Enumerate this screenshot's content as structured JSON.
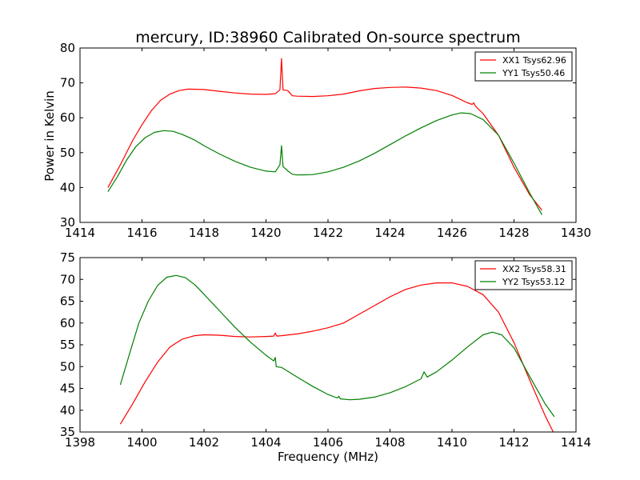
{
  "figure": {
    "title": "mercury, ID:38960 Calibrated On-source spectrum",
    "ylabel": "Power in Kelvin",
    "xlabel": "Frequency (MHz)"
  },
  "chart_data": [
    {
      "type": "line",
      "xlim": [
        1414,
        1430
      ],
      "ylim": [
        30,
        80
      ],
      "xticks": [
        1414,
        1416,
        1418,
        1420,
        1422,
        1424,
        1426,
        1428,
        1430
      ],
      "yticks": [
        30,
        40,
        50,
        60,
        70,
        80
      ],
      "legend": "top-right",
      "grid": false,
      "series": [
        {
          "name": "XX1 Tsys62.96",
          "color": "#ff0000",
          "points": [
            [
              1414.9,
              40.0
            ],
            [
              1415.3,
              46.5
            ],
            [
              1415.7,
              53.5
            ],
            [
              1416.0,
              58.0
            ],
            [
              1416.3,
              62.0
            ],
            [
              1416.6,
              65.0
            ],
            [
              1416.9,
              66.8
            ],
            [
              1417.2,
              67.8
            ],
            [
              1417.5,
              68.2
            ],
            [
              1418.0,
              68.1
            ],
            [
              1418.5,
              67.6
            ],
            [
              1419.0,
              67.1
            ],
            [
              1419.5,
              66.8
            ],
            [
              1420.0,
              66.7
            ],
            [
              1420.3,
              66.9
            ],
            [
              1420.45,
              68.0
            ],
            [
              1420.5,
              77.0
            ],
            [
              1420.55,
              68.0
            ],
            [
              1420.7,
              67.8
            ],
            [
              1420.85,
              66.3
            ],
            [
              1421.0,
              66.2
            ],
            [
              1421.5,
              66.1
            ],
            [
              1422.0,
              66.3
            ],
            [
              1422.5,
              66.8
            ],
            [
              1423.0,
              67.7
            ],
            [
              1423.5,
              68.4
            ],
            [
              1424.0,
              68.7
            ],
            [
              1424.5,
              68.8
            ],
            [
              1425.0,
              68.5
            ],
            [
              1425.5,
              67.8
            ],
            [
              1426.0,
              66.4
            ],
            [
              1426.5,
              64.3
            ],
            [
              1426.65,
              63.8
            ],
            [
              1426.7,
              64.3
            ],
            [
              1426.75,
              63.4
            ],
            [
              1427.0,
              61.2
            ],
            [
              1427.5,
              55.0
            ],
            [
              1428.0,
              45.8
            ],
            [
              1428.5,
              38.0
            ],
            [
              1428.9,
              33.5
            ]
          ]
        },
        {
          "name": "YY1 Tsys50.46",
          "color": "#008000",
          "points": [
            [
              1414.9,
              38.8
            ],
            [
              1415.2,
              43.0
            ],
            [
              1415.5,
              47.8
            ],
            [
              1415.8,
              51.7
            ],
            [
              1416.1,
              54.3
            ],
            [
              1416.4,
              55.8
            ],
            [
              1416.7,
              56.3
            ],
            [
              1417.0,
              56.1
            ],
            [
              1417.3,
              55.2
            ],
            [
              1417.7,
              53.6
            ],
            [
              1418.0,
              52.0
            ],
            [
              1418.5,
              49.6
            ],
            [
              1419.0,
              47.5
            ],
            [
              1419.5,
              45.8
            ],
            [
              1420.0,
              44.7
            ],
            [
              1420.3,
              44.5
            ],
            [
              1420.45,
              46.5
            ],
            [
              1420.5,
              52.0
            ],
            [
              1420.55,
              46.0
            ],
            [
              1420.7,
              44.8
            ],
            [
              1420.85,
              43.8
            ],
            [
              1421.0,
              43.6
            ],
            [
              1421.5,
              43.7
            ],
            [
              1422.0,
              44.5
            ],
            [
              1422.5,
              45.8
            ],
            [
              1423.0,
              47.6
            ],
            [
              1423.5,
              49.8
            ],
            [
              1424.0,
              52.3
            ],
            [
              1424.5,
              54.8
            ],
            [
              1425.0,
              57.1
            ],
            [
              1425.5,
              59.2
            ],
            [
              1426.0,
              60.8
            ],
            [
              1426.3,
              61.4
            ],
            [
              1426.6,
              61.2
            ],
            [
              1427.0,
              59.5
            ],
            [
              1427.5,
              55.0
            ],
            [
              1428.0,
              47.0
            ],
            [
              1428.5,
              38.5
            ],
            [
              1428.9,
              32.2
            ]
          ]
        }
      ]
    },
    {
      "type": "line",
      "xlim": [
        1398,
        1414
      ],
      "ylim": [
        35,
        75
      ],
      "xticks": [
        1398,
        1400,
        1402,
        1404,
        1406,
        1408,
        1410,
        1412,
        1414
      ],
      "yticks": [
        35,
        40,
        45,
        50,
        55,
        60,
        65,
        70,
        75
      ],
      "legend": "top-right",
      "grid": false,
      "series": [
        {
          "name": "XX2 Tsys58.31",
          "color": "#ff0000",
          "points": [
            [
              1399.3,
              36.8
            ],
            [
              1399.7,
              41.5
            ],
            [
              1400.1,
              46.5
            ],
            [
              1400.5,
              51.0
            ],
            [
              1400.9,
              54.5
            ],
            [
              1401.3,
              56.3
            ],
            [
              1401.7,
              57.1
            ],
            [
              1402.0,
              57.3
            ],
            [
              1402.5,
              57.2
            ],
            [
              1403.0,
              56.9
            ],
            [
              1403.5,
              56.8
            ],
            [
              1404.0,
              56.9
            ],
            [
              1404.25,
              57.0
            ],
            [
              1404.3,
              57.7
            ],
            [
              1404.35,
              57.0
            ],
            [
              1404.5,
              57.1
            ],
            [
              1405.0,
              57.5
            ],
            [
              1405.5,
              58.1
            ],
            [
              1406.0,
              58.9
            ],
            [
              1406.5,
              60.0
            ],
            [
              1407.0,
              62.0
            ],
            [
              1407.5,
              64.0
            ],
            [
              1408.0,
              66.0
            ],
            [
              1408.5,
              67.7
            ],
            [
              1409.0,
              68.7
            ],
            [
              1409.5,
              69.2
            ],
            [
              1410.0,
              69.2
            ],
            [
              1410.5,
              68.4
            ],
            [
              1411.0,
              66.5
            ],
            [
              1411.5,
              62.5
            ],
            [
              1412.0,
              55.5
            ],
            [
              1412.5,
              47.0
            ],
            [
              1413.0,
              38.8
            ],
            [
              1413.3,
              34.5
            ]
          ]
        },
        {
          "name": "YY2 Tsys53.12",
          "color": "#008000",
          "points": [
            [
              1399.3,
              45.8
            ],
            [
              1399.6,
              53.0
            ],
            [
              1399.9,
              60.0
            ],
            [
              1400.2,
              65.0
            ],
            [
              1400.5,
              68.6
            ],
            [
              1400.8,
              70.5
            ],
            [
              1401.1,
              70.9
            ],
            [
              1401.4,
              70.4
            ],
            [
              1401.7,
              68.8
            ],
            [
              1402.0,
              66.6
            ],
            [
              1402.5,
              62.8
            ],
            [
              1403.0,
              59.0
            ],
            [
              1403.5,
              55.6
            ],
            [
              1404.0,
              52.6
            ],
            [
              1404.25,
              51.3
            ],
            [
              1404.3,
              52.1
            ],
            [
              1404.33,
              50.0
            ],
            [
              1404.5,
              49.8
            ],
            [
              1405.0,
              47.6
            ],
            [
              1405.5,
              45.5
            ],
            [
              1406.0,
              43.6
            ],
            [
              1406.3,
              42.8
            ],
            [
              1406.35,
              43.2
            ],
            [
              1406.4,
              42.6
            ],
            [
              1406.7,
              42.4
            ],
            [
              1407.0,
              42.5
            ],
            [
              1407.5,
              43.0
            ],
            [
              1408.0,
              44.0
            ],
            [
              1408.5,
              45.4
            ],
            [
              1409.0,
              47.2
            ],
            [
              1409.1,
              48.8
            ],
            [
              1409.2,
              47.6
            ],
            [
              1409.5,
              48.8
            ],
            [
              1410.0,
              51.5
            ],
            [
              1410.5,
              54.5
            ],
            [
              1411.0,
              57.3
            ],
            [
              1411.3,
              57.9
            ],
            [
              1411.6,
              57.3
            ],
            [
              1412.0,
              54.3
            ],
            [
              1412.5,
              47.8
            ],
            [
              1413.0,
              41.5
            ],
            [
              1413.3,
              38.5
            ]
          ]
        }
      ]
    }
  ]
}
